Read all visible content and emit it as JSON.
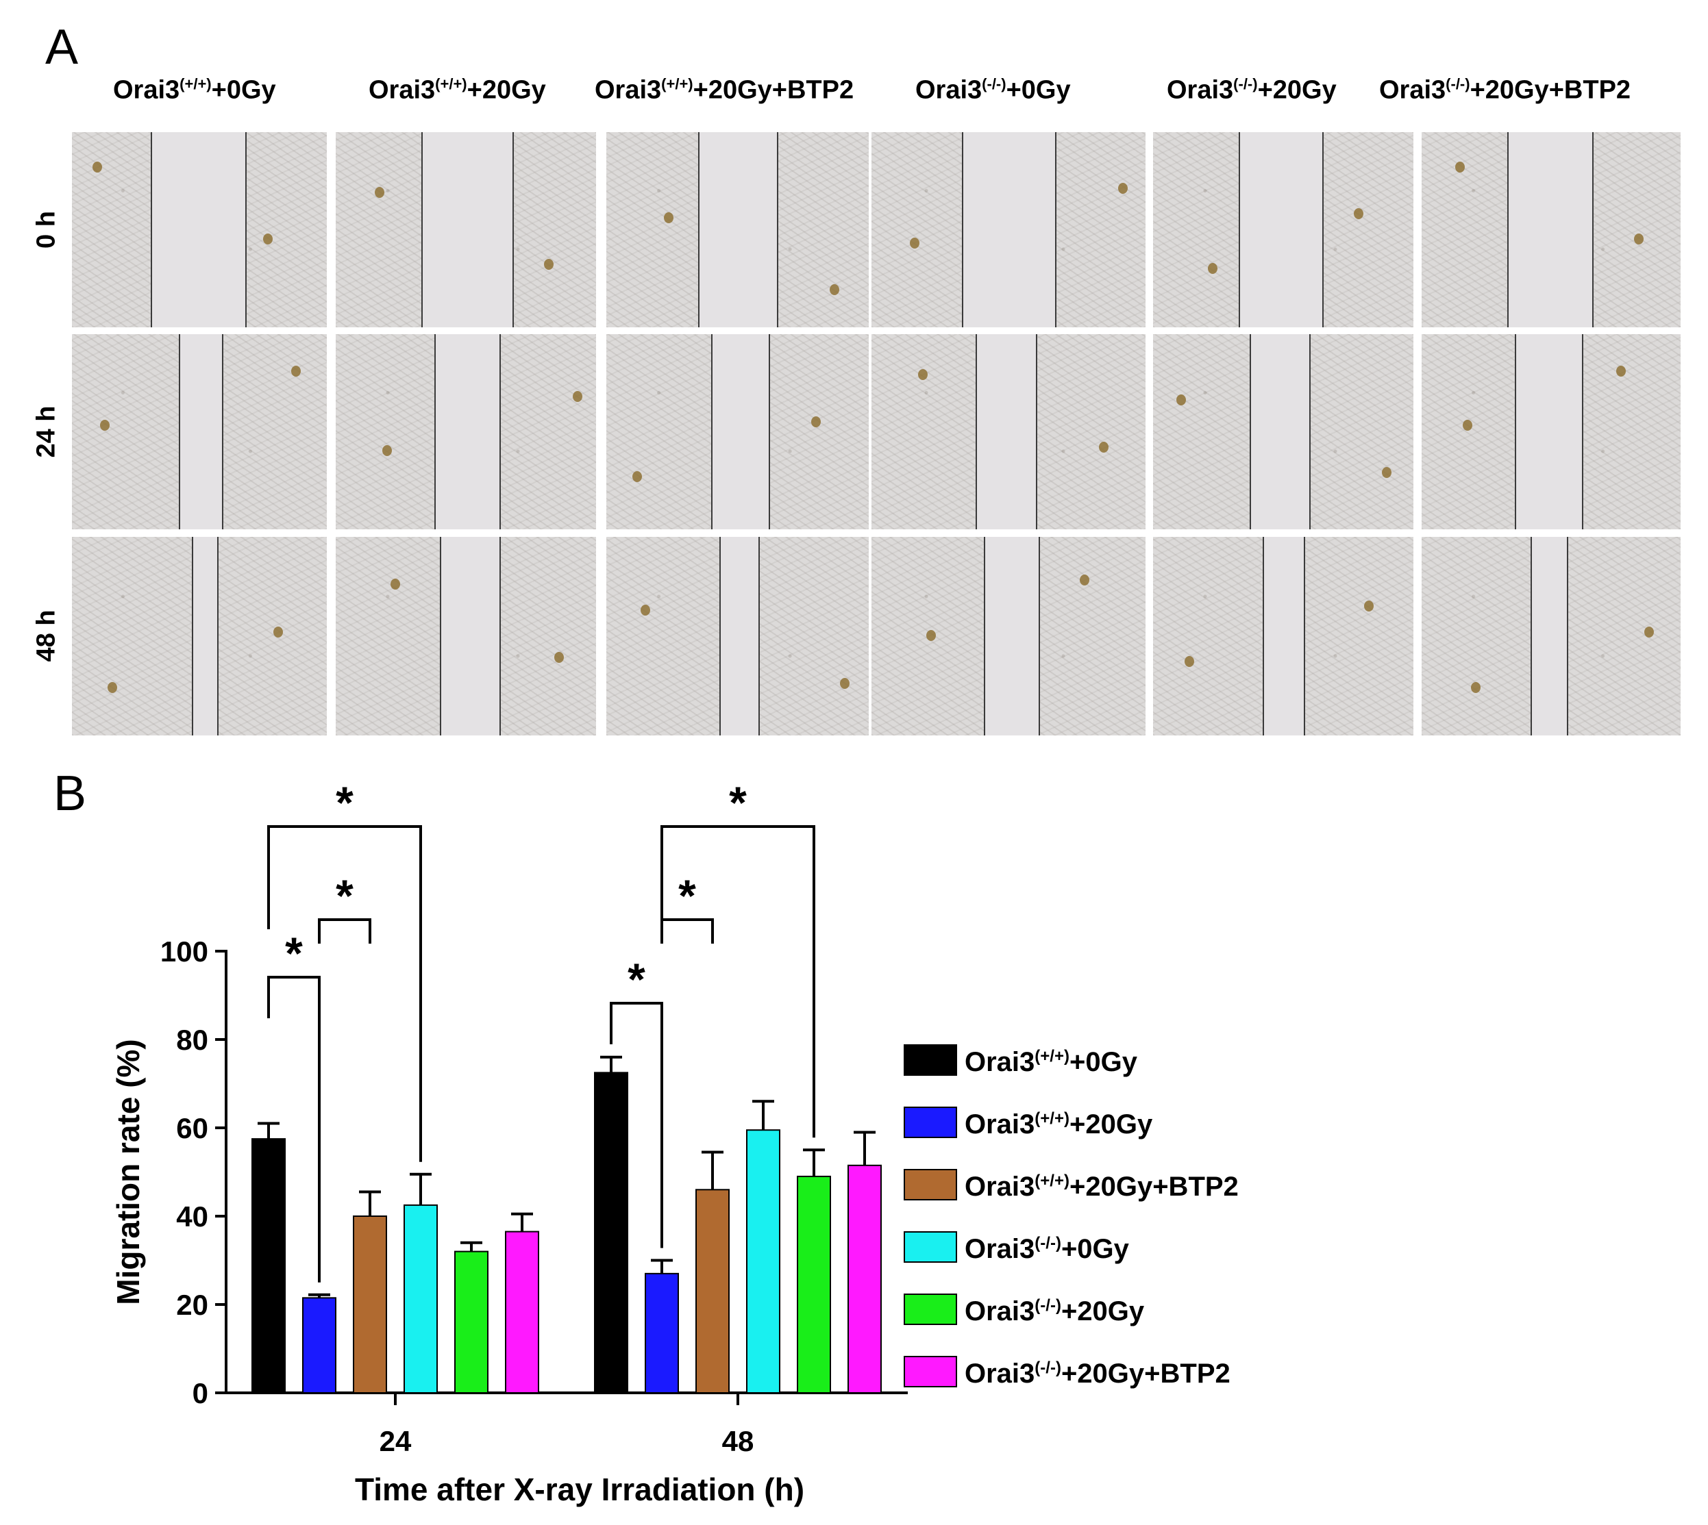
{
  "panel_a": {
    "letter": "A",
    "columns": [
      {
        "base": "Orai3",
        "sup": "(+/+)",
        "rest": "+0Gy"
      },
      {
        "base": "Orai3",
        "sup": "(+/+)",
        "rest": "+20Gy"
      },
      {
        "base": "Orai3",
        "sup": "(+/+)",
        "rest": "+20Gy+BTP2"
      },
      {
        "base": "Orai3",
        "sup": "(-/-)",
        "rest": "+0Gy"
      },
      {
        "base": "Orai3",
        "sup": "(-/-)",
        "rest": "+20Gy"
      },
      {
        "base": "Orai3",
        "sup": "(-/-)",
        "rest": "+20Gy+BTP2"
      }
    ],
    "rows": [
      "0 h",
      "24 h",
      "48 h"
    ]
  },
  "panel_b": {
    "letter": "B"
  },
  "chart_data": {
    "type": "bar",
    "title": "",
    "xlabel": "Time after X-ray Irradiation (h)",
    "ylabel": "Migration rate (%)",
    "ylim": [
      0,
      100
    ],
    "yticks": [
      "0",
      "20",
      "40",
      "60",
      "80",
      "100"
    ],
    "categories": [
      "24",
      "48"
    ],
    "series": [
      {
        "name": "Orai3(+/+)+0Gy",
        "legend_base": "Orai3",
        "legend_sup": "(+/+)",
        "legend_rest": "+0Gy",
        "color": "#000000",
        "values": [
          57.5,
          72.5
        ],
        "errors": [
          3.5,
          3.5
        ]
      },
      {
        "name": "Orai3(+/+)+20Gy",
        "legend_base": "Orai3",
        "legend_sup": "(+/+)",
        "legend_rest": "+20Gy",
        "color": "#1a1aff",
        "values": [
          21.5,
          27.0
        ],
        "errors": [
          0.7,
          3.0
        ]
      },
      {
        "name": "Orai3(+/+)+20Gy+BTP2",
        "legend_base": "Orai3",
        "legend_sup": "(+/+)",
        "legend_rest": "+20Gy+BTP2",
        "color": "#b06a30",
        "values": [
          40.0,
          46.0
        ],
        "errors": [
          5.5,
          8.5
        ]
      },
      {
        "name": "Orai3(-/-)+0Gy",
        "legend_base": "Orai3",
        "legend_sup": "(-/-)",
        "legend_rest": "+0Gy",
        "color": "#19f0f0",
        "values": [
          42.5,
          59.5
        ],
        "errors": [
          7.0,
          6.5
        ]
      },
      {
        "name": "Orai3(-/-)+20Gy",
        "legend_base": "Orai3",
        "legend_sup": "(-/-)",
        "legend_rest": "+20Gy",
        "color": "#19ee19",
        "values": [
          32.0,
          49.0
        ],
        "errors": [
          2.0,
          6.0
        ]
      },
      {
        "name": "Orai3(-/-)+20Gy+BTP2",
        "legend_base": "Orai3",
        "legend_sup": "(-/-)",
        "legend_rest": "+20Gy+BTP2",
        "color": "#ff19ff",
        "values": [
          36.5,
          51.5
        ],
        "errors": [
          4.0,
          7.5
        ]
      }
    ],
    "significance": [
      {
        "category": "24",
        "from_series": 0,
        "to_series": 1,
        "label": "*"
      },
      {
        "category": "24",
        "from_series": 1,
        "to_series": 2,
        "label": "*"
      },
      {
        "category": "24",
        "from_series": 0,
        "to_series": 3,
        "label": "*"
      },
      {
        "category": "48",
        "from_series": 0,
        "to_series": 1,
        "label": "*"
      },
      {
        "category": "48",
        "from_series": 1,
        "to_series": 2,
        "label": "*"
      },
      {
        "category": "48",
        "from_series": 1,
        "to_series": 4,
        "label": "*"
      }
    ],
    "legend_position": "right"
  }
}
